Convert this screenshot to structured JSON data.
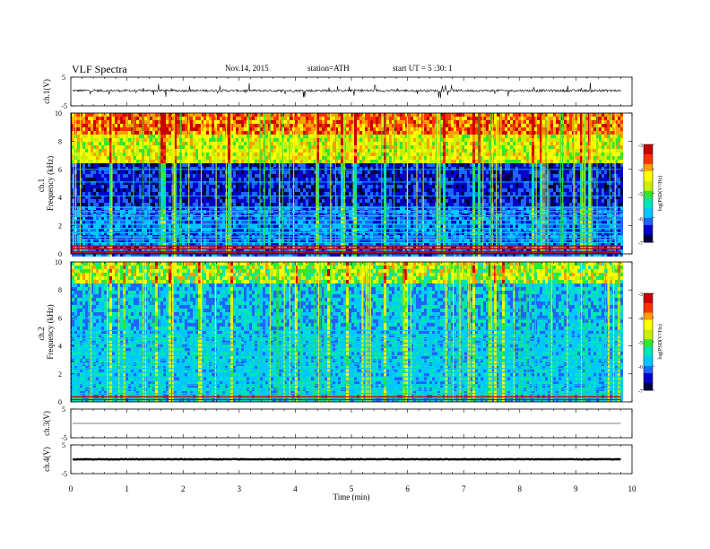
{
  "header": {
    "title": "VLF  Spectra",
    "date": "Nov.14, 2015",
    "station": "station=ATH",
    "start": "start  UT  =   5  :30: 1"
  },
  "chart_data": [
    {
      "type": "line",
      "name": "ch1-waveform",
      "ylabel": "ch.1(V)",
      "ylim": [
        -5,
        5
      ],
      "yticks": [
        "5",
        "-5"
      ],
      "xlim": [
        0,
        10
      ],
      "baseline": 0.3,
      "noise_amplitude": 0.4,
      "spike_amplitude": 2.5,
      "color": "#000000"
    },
    {
      "type": "heatmap",
      "name": "ch1-spectrogram",
      "ylabel_top": "ch.1",
      "ylabel": "Frequency  (kHz)",
      "ylim": [
        0,
        10
      ],
      "yticks": [
        "0",
        "2",
        "4",
        "6",
        "8",
        "10"
      ],
      "xlim": [
        0,
        10
      ],
      "data_end_min": 9.8,
      "colorbar": {
        "label": "log(PSD(V²/Hz)",
        "range": [
          -7,
          -3
        ],
        "ticks": [
          "-3",
          "-4",
          "-5",
          "-6",
          "-7"
        ]
      },
      "palette": [
        "#000040",
        "#0000c8",
        "#1e64ff",
        "#00c8ff",
        "#00e6b4",
        "#32e632",
        "#c8f000",
        "#ffff00",
        "#ffa000",
        "#ff3200",
        "#c80000"
      ],
      "strong_lines_khz": [
        0.0,
        0.1,
        0.3,
        0.5
      ],
      "mid_lines_khz": [
        0.8,
        1.0,
        1.2,
        1.5,
        1.8,
        2.1,
        2.4,
        2.7,
        3.0,
        3.3
      ],
      "weak_lines_khz": [
        4.1,
        5.1,
        6.0
      ]
    },
    {
      "type": "heatmap",
      "name": "ch2-spectrogram",
      "ylabel_top": "ch.2",
      "ylabel": "Frequency  (kHz)",
      "ylim": [
        0,
        10
      ],
      "yticks": [
        "0",
        "2",
        "4",
        "6",
        "8",
        "10"
      ],
      "xlim": [
        0,
        10
      ],
      "data_end_min": 9.8,
      "colorbar": {
        "label": "log(PSD(V²/Hz)",
        "range": [
          -7,
          -3
        ],
        "ticks": [
          "-3",
          "-4",
          "-5",
          "-6",
          "-7"
        ]
      },
      "palette": [
        "#000040",
        "#0000c8",
        "#1e64ff",
        "#00c8ff",
        "#00e6b4",
        "#32e632",
        "#c8f000",
        "#ffff00",
        "#ffa000",
        "#ff3200",
        "#c80000"
      ],
      "strong_lines_khz": [
        0.1,
        0.3
      ],
      "mid_lines_khz": [
        0.6,
        0.9,
        1.2,
        1.5,
        1.8,
        2.1,
        2.4,
        2.7,
        3.0,
        3.3,
        3.6,
        3.9,
        4.2,
        4.5,
        4.8,
        5.1
      ],
      "weak_lines_khz": [
        6.0
      ]
    },
    {
      "type": "line",
      "name": "ch3-waveform",
      "ylabel": "ch.3(V)",
      "ylim": [
        -5,
        5
      ],
      "yticks": [
        "5",
        "-5"
      ],
      "xlim": [
        0,
        10
      ],
      "baseline": 0.0,
      "noise_amplitude": 0.0,
      "spike_amplitude": 0.0,
      "color": "#000000"
    },
    {
      "type": "line",
      "name": "ch4-waveform",
      "ylabel": "ch.4(V)",
      "ylim": [
        -5,
        5
      ],
      "yticks": [
        "5",
        "-5"
      ],
      "xlim": [
        0,
        10
      ],
      "baseline": 0.0,
      "noise_amplitude": 0.1,
      "spike_amplitude": 0.0,
      "color": "#000000"
    }
  ],
  "x_axis": {
    "label": "Time  (min)",
    "ticks": [
      "0",
      "1",
      "2",
      "3",
      "4",
      "5",
      "6",
      "7",
      "8",
      "9",
      "10"
    ]
  }
}
